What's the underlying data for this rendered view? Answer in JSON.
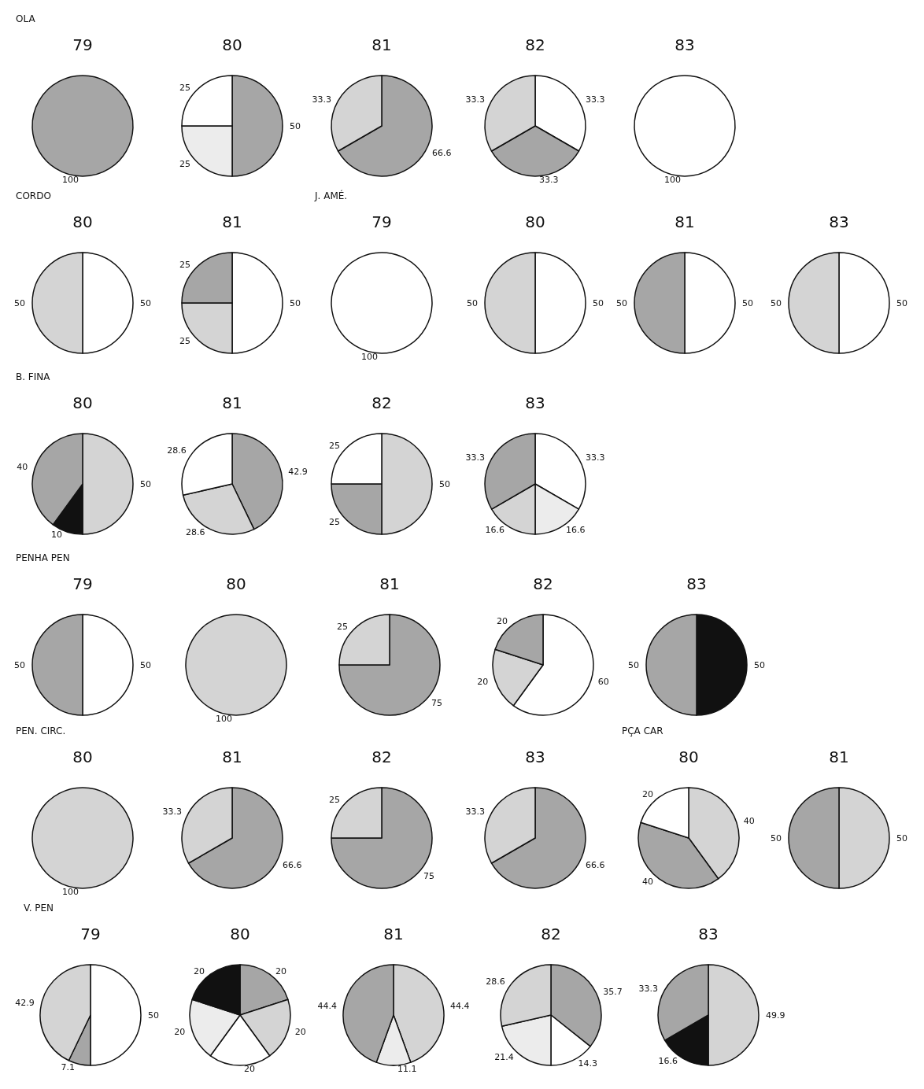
{
  "chart_data": [
    {
      "type": "pie",
      "title": "OLA",
      "subtitle": "79",
      "categories": [
        null
      ],
      "values": [
        100
      ],
      "colors": [
        "#a6a6a6"
      ],
      "value_labels": [
        "100"
      ]
    },
    {
      "type": "pie",
      "subtitle": "80",
      "categories": [
        null,
        null,
        null
      ],
      "values": [
        50,
        25,
        25
      ],
      "colors": [
        "#a6a6a6",
        "#ececec",
        "#ffffff"
      ],
      "value_labels": [
        "50",
        "25",
        "25"
      ]
    },
    {
      "type": "pie",
      "subtitle": "81",
      "categories": [
        null,
        null
      ],
      "values": [
        66.6,
        33.3
      ],
      "colors": [
        "#a6a6a6",
        "#d4d4d4"
      ],
      "value_labels": [
        "66.6",
        "33.3"
      ]
    },
    {
      "type": "pie",
      "subtitle": "82",
      "categories": [
        null,
        null,
        null
      ],
      "values": [
        33.3,
        33.3,
        33.3
      ],
      "colors": [
        "#ffffff",
        "#a6a6a6",
        "#d4d4d4"
      ],
      "value_labels": [
        "33.3",
        "33.3",
        "33.3"
      ]
    },
    {
      "type": "pie",
      "subtitle": "83",
      "categories": [
        null
      ],
      "values": [
        100
      ],
      "colors": [
        "#ffffff"
      ],
      "value_labels": [
        "100"
      ]
    },
    {
      "type": "pie",
      "title": "CORDO",
      "subtitle": "80",
      "categories": [
        null,
        null
      ],
      "values": [
        50,
        50
      ],
      "colors": [
        "#ffffff",
        "#d4d4d4"
      ],
      "value_labels": [
        "50",
        "50"
      ]
    },
    {
      "type": "pie",
      "subtitle": "81",
      "categories": [
        null,
        null,
        null
      ],
      "values": [
        50,
        25,
        25
      ],
      "colors": [
        "#ffffff",
        "#d4d4d4",
        "#a6a6a6"
      ],
      "value_labels": [
        "50",
        "25",
        "25"
      ]
    },
    {
      "type": "pie",
      "title": "J. AMÉ.",
      "subtitle": "79",
      "categories": [
        null
      ],
      "values": [
        100
      ],
      "colors": [
        "#ffffff"
      ],
      "value_labels": [
        "100"
      ]
    },
    {
      "type": "pie",
      "subtitle": "80",
      "categories": [
        null,
        null
      ],
      "values": [
        50,
        50
      ],
      "colors": [
        "#ffffff",
        "#d4d4d4"
      ],
      "value_labels": [
        "50",
        "50"
      ]
    },
    {
      "type": "pie",
      "subtitle": "81",
      "categories": [
        null,
        null
      ],
      "values": [
        50,
        50
      ],
      "colors": [
        "#ffffff",
        "#a6a6a6"
      ],
      "value_labels": [
        "50",
        "50"
      ]
    },
    {
      "type": "pie",
      "subtitle": "83",
      "categories": [
        null,
        null
      ],
      "values": [
        50,
        50
      ],
      "colors": [
        "#ffffff",
        "#d4d4d4"
      ],
      "value_labels": [
        "50",
        "50"
      ]
    },
    {
      "type": "pie",
      "title": "B. FINA",
      "subtitle": "80",
      "categories": [
        null,
        null,
        null
      ],
      "values": [
        50,
        10,
        40
      ],
      "colors": [
        "#d4d4d4",
        "#111111",
        "#a6a6a6"
      ],
      "value_labels": [
        "50",
        "10",
        "40"
      ]
    },
    {
      "type": "pie",
      "subtitle": "81",
      "categories": [
        null,
        null,
        null
      ],
      "values": [
        42.9,
        28.6,
        28.6
      ],
      "colors": [
        "#a6a6a6",
        "#d4d4d4",
        "#ffffff"
      ],
      "value_labels": [
        "42.9",
        "28.6",
        "28.6"
      ]
    },
    {
      "type": "pie",
      "subtitle": "82",
      "categories": [
        null,
        null,
        null
      ],
      "values": [
        50,
        25,
        25
      ],
      "colors": [
        "#d4d4d4",
        "#a6a6a6",
        "#ffffff"
      ],
      "value_labels": [
        "50",
        "25",
        "25"
      ]
    },
    {
      "type": "pie",
      "subtitle": "83",
      "categories": [
        null,
        null,
        null,
        null
      ],
      "values": [
        33.3,
        16.6,
        16.6,
        33.3
      ],
      "colors": [
        "#ffffff",
        "#ececec",
        "#d4d4d4",
        "#a6a6a6"
      ],
      "value_labels": [
        "33.3",
        "16.6",
        "16.6",
        "33.3"
      ]
    },
    {
      "type": "pie",
      "title": "PENHA PEN",
      "subtitle": "79",
      "categories": [
        null,
        null
      ],
      "values": [
        50,
        50
      ],
      "colors": [
        "#ffffff",
        "#a6a6a6"
      ],
      "value_labels": [
        "50",
        "50"
      ]
    },
    {
      "type": "pie",
      "subtitle": "80",
      "categories": [
        null
      ],
      "values": [
        100
      ],
      "colors": [
        "#d4d4d4"
      ],
      "value_labels": [
        "100"
      ]
    },
    {
      "type": "pie",
      "subtitle": "81",
      "categories": [
        null,
        null
      ],
      "values": [
        75,
        25
      ],
      "colors": [
        "#a6a6a6",
        "#d4d4d4"
      ],
      "value_labels": [
        "75",
        "25"
      ]
    },
    {
      "type": "pie",
      "subtitle": "82",
      "categories": [
        null,
        null,
        null
      ],
      "values": [
        60,
        20,
        20
      ],
      "colors": [
        "#ffffff",
        "#d4d4d4",
        "#a6a6a6"
      ],
      "value_labels": [
        "60",
        "20",
        "20"
      ]
    },
    {
      "type": "pie",
      "subtitle": "83",
      "categories": [
        null,
        null
      ],
      "values": [
        50,
        50
      ],
      "colors": [
        "#111111",
        "#a6a6a6"
      ],
      "value_labels": [
        "50",
        "50"
      ]
    },
    {
      "type": "pie",
      "title": "PEN. CIRC.",
      "subtitle": "80",
      "categories": [
        null
      ],
      "values": [
        100
      ],
      "colors": [
        "#d4d4d4"
      ],
      "value_labels": [
        "100"
      ]
    },
    {
      "type": "pie",
      "subtitle": "81",
      "categories": [
        null,
        null
      ],
      "values": [
        66.6,
        33.3
      ],
      "colors": [
        "#a6a6a6",
        "#d4d4d4"
      ],
      "value_labels": [
        "66.6",
        "33.3"
      ]
    },
    {
      "type": "pie",
      "subtitle": "82",
      "categories": [
        null,
        null
      ],
      "values": [
        75,
        25
      ],
      "colors": [
        "#a6a6a6",
        "#d4d4d4"
      ],
      "value_labels": [
        "75",
        "25"
      ]
    },
    {
      "type": "pie",
      "subtitle": "83",
      "categories": [
        null,
        null
      ],
      "values": [
        66.6,
        33.3
      ],
      "colors": [
        "#a6a6a6",
        "#d4d4d4"
      ],
      "value_labels": [
        "66.6",
        "33.3"
      ]
    },
    {
      "type": "pie",
      "title": "PÇA CAR",
      "subtitle": "80",
      "categories": [
        null,
        null,
        null
      ],
      "values": [
        40,
        40,
        20
      ],
      "colors": [
        "#d4d4d4",
        "#a6a6a6",
        "#ffffff"
      ],
      "value_labels": [
        "40",
        "40",
        "20"
      ]
    },
    {
      "type": "pie",
      "subtitle": "81",
      "categories": [
        null,
        null
      ],
      "values": [
        50,
        50
      ],
      "colors": [
        "#d4d4d4",
        "#a6a6a6"
      ],
      "value_labels": [
        "50",
        "50"
      ]
    },
    {
      "type": "pie",
      "title": "V. PEN",
      "subtitle": "79",
      "categories": [
        null,
        null,
        null
      ],
      "values": [
        50,
        7.1,
        42.9
      ],
      "colors": [
        "#ffffff",
        "#a6a6a6",
        "#d4d4d4"
      ],
      "value_labels": [
        "50",
        "7.1",
        "42.9"
      ]
    },
    {
      "type": "pie",
      "subtitle": "80",
      "categories": [
        null,
        null,
        null,
        null,
        null
      ],
      "values": [
        20,
        20,
        20,
        20,
        20
      ],
      "colors": [
        "#a6a6a6",
        "#d4d4d4",
        "#ffffff",
        "#ececec",
        "#111111"
      ],
      "value_labels": [
        "20",
        "20",
        "20",
        "20",
        "20"
      ]
    },
    {
      "type": "pie",
      "subtitle": "81",
      "categories": [
        null,
        null,
        null
      ],
      "values": [
        44.4,
        11.1,
        44.4
      ],
      "colors": [
        "#d4d4d4",
        "#ececec",
        "#a6a6a6"
      ],
      "value_labels": [
        "44.4",
        "11.1",
        "44.4"
      ]
    },
    {
      "type": "pie",
      "subtitle": "82",
      "categories": [
        null,
        null,
        null,
        null
      ],
      "values": [
        35.7,
        14.3,
        21.4,
        28.6
      ],
      "colors": [
        "#a6a6a6",
        "#ffffff",
        "#ececec",
        "#d4d4d4"
      ],
      "value_labels": [
        "35.7",
        "14.3",
        "21.4",
        "28.6"
      ]
    },
    {
      "type": "pie",
      "subtitle": "83",
      "categories": [
        null,
        null,
        null
      ],
      "values": [
        49.9,
        16.6,
        33.3
      ],
      "colors": [
        "#d4d4d4",
        "#111111",
        "#a6a6a6"
      ],
      "value_labels": [
        "49.9",
        "16.6",
        "33.3"
      ]
    }
  ]
}
